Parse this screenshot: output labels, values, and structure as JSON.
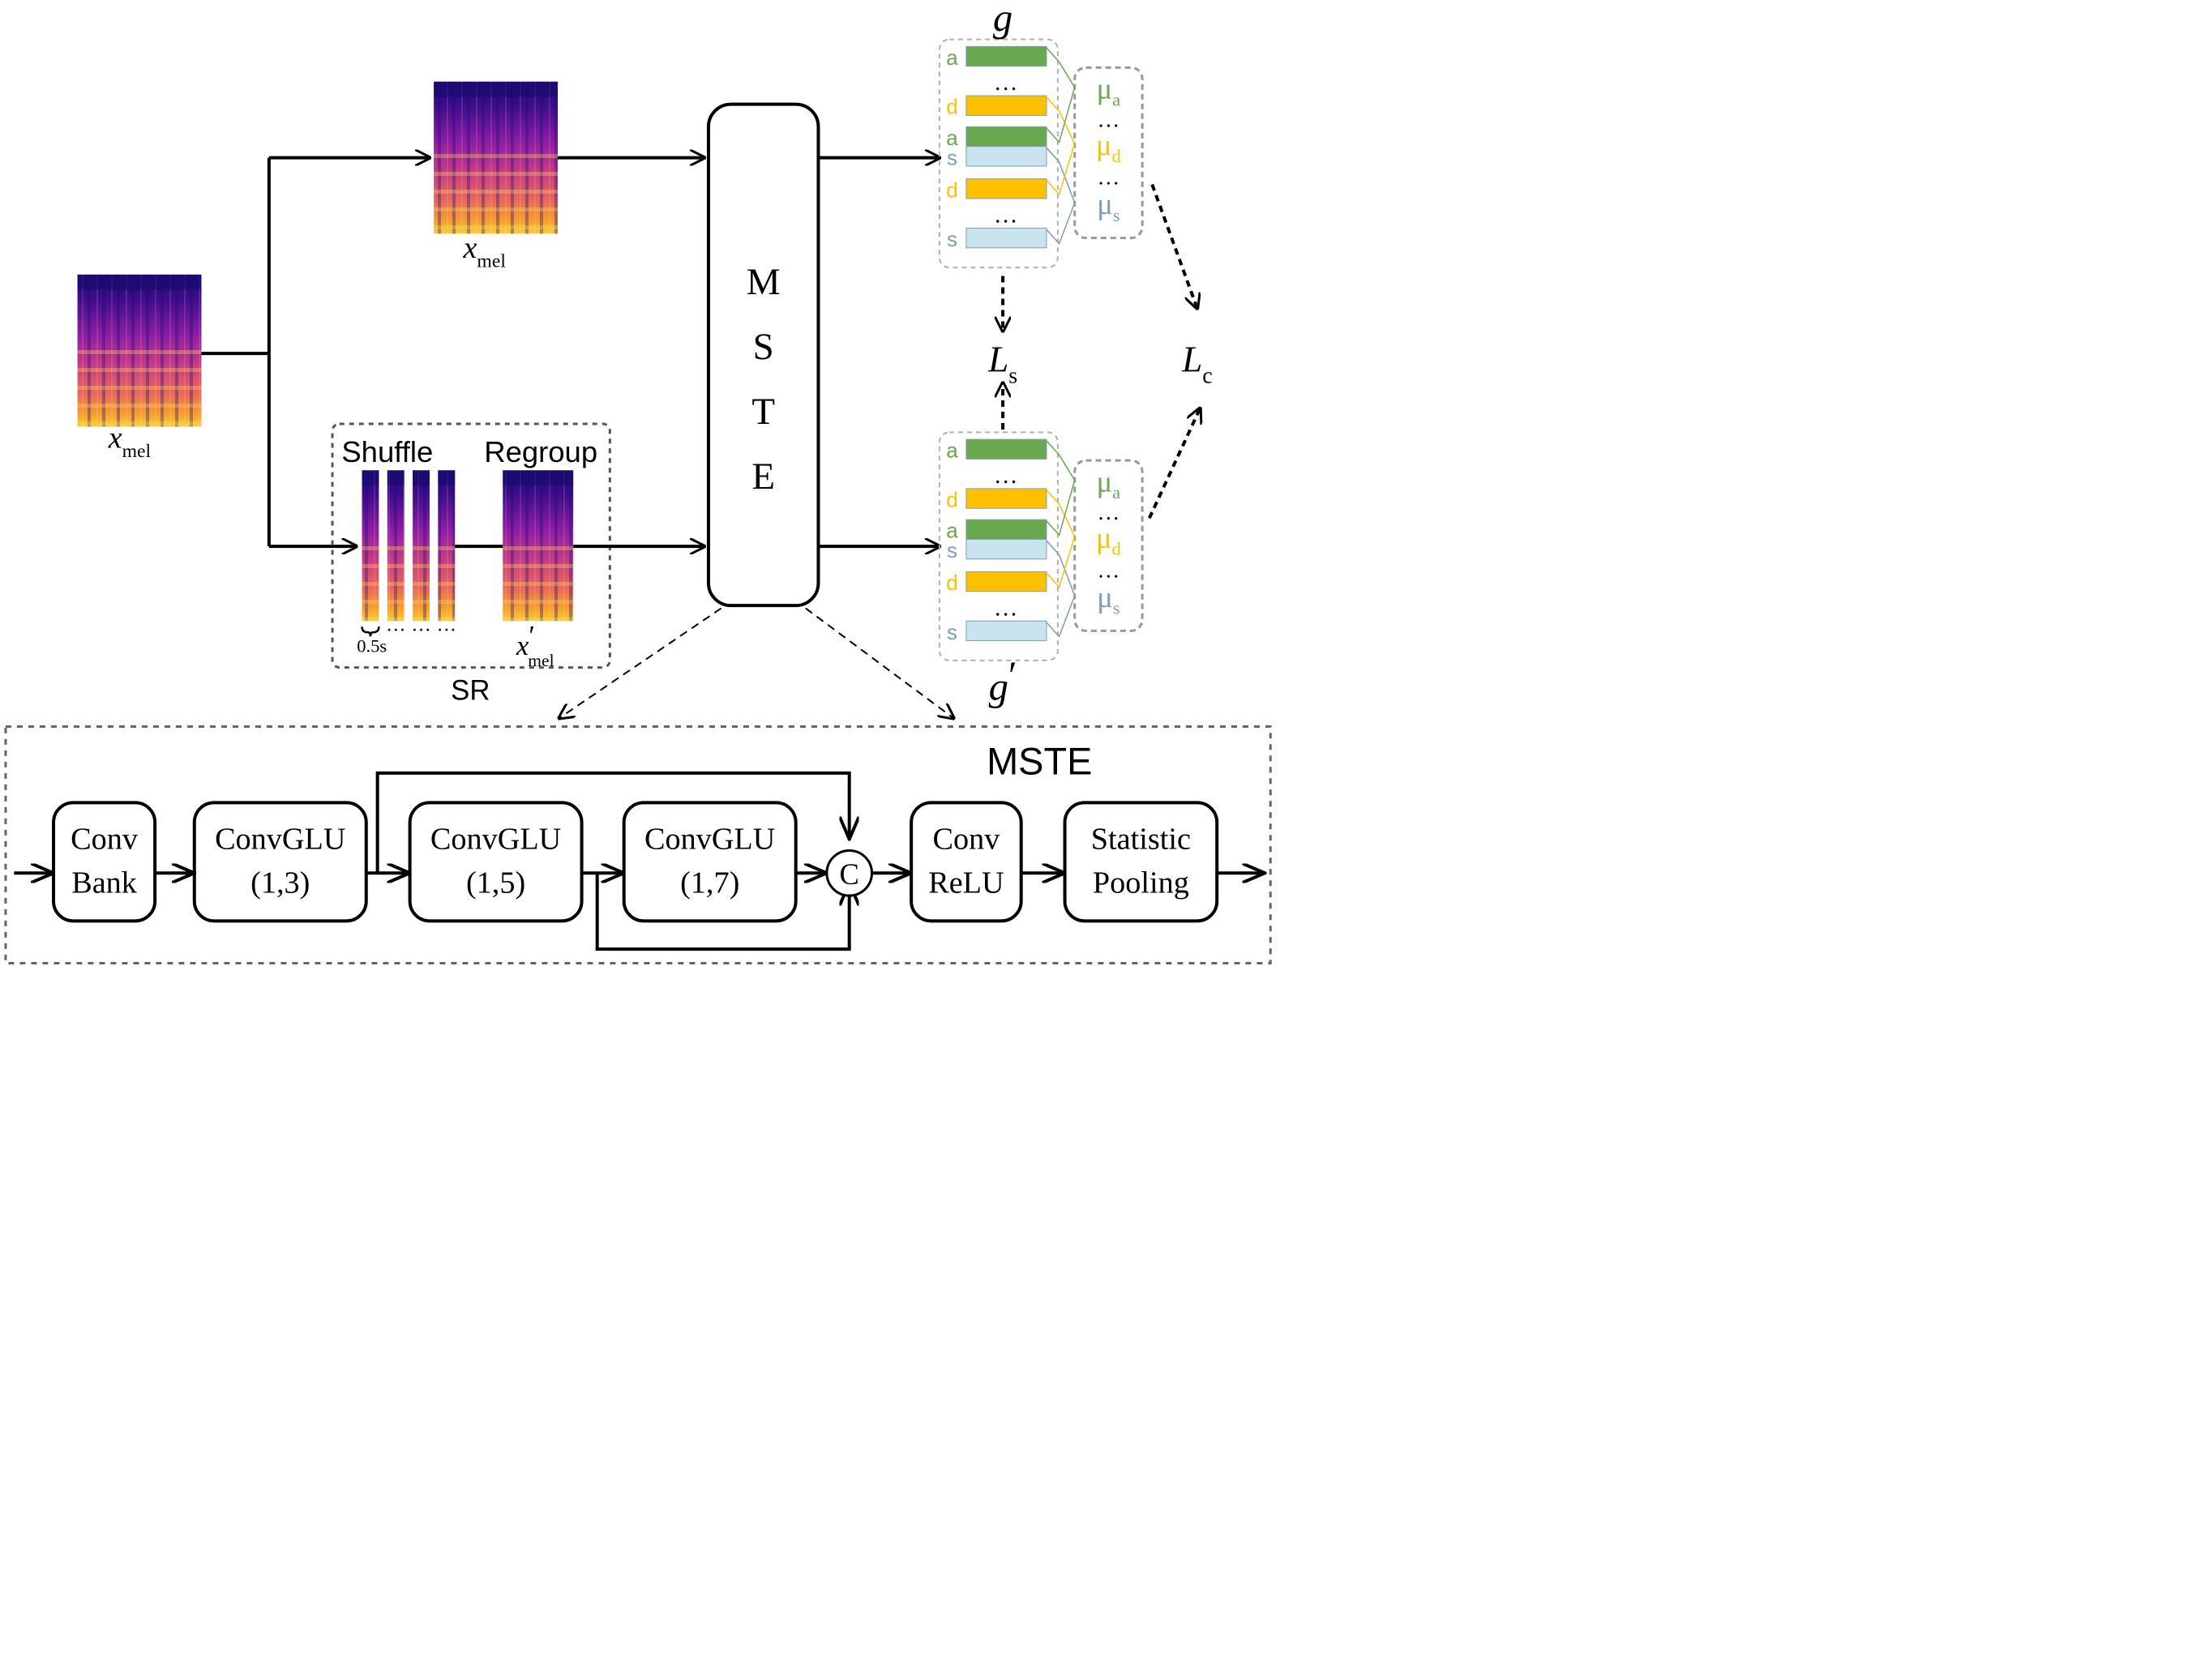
{
  "colors": {
    "green": "#6aa84f",
    "yellow": "#ffc000",
    "blue": "#c9e4ef",
    "blue_text": "#7c9cc4",
    "line": "#000000",
    "dashed_gray": "#808080",
    "light_gray": "#b0b0b0"
  },
  "input": {
    "label_base": "x",
    "label_sub": "mel"
  },
  "top_branch": {
    "label_base": "x",
    "label_sub": "mel"
  },
  "sr": {
    "label": "SR",
    "shuffle_label": "Shuffle",
    "regroup_label": "Regroup",
    "segment_label": "0.5s",
    "dots": "…",
    "output_base": "x",
    "output_prime": "′",
    "output_sub": "mel"
  },
  "mste_block": {
    "letters": [
      "M",
      "S",
      "T",
      "E"
    ]
  },
  "embeddings_top": {
    "label": "g",
    "rows": [
      "a",
      "…",
      "d",
      "a",
      "s",
      "d",
      "…",
      "s"
    ],
    "means": [
      {
        "symbol": "μ",
        "sub": "a",
        "color_key": "green"
      },
      {
        "symbol": "…",
        "sub": "",
        "color_key": "line"
      },
      {
        "symbol": "μ",
        "sub": "d",
        "color_key": "yellow"
      },
      {
        "symbol": "…",
        "sub": "",
        "color_key": "line"
      },
      {
        "symbol": "μ",
        "sub": "s",
        "color_key": "blue_text"
      }
    ]
  },
  "embeddings_bottom": {
    "label": "g",
    "prime": "′",
    "rows": [
      "a",
      "…",
      "d",
      "a",
      "s",
      "d",
      "…",
      "s"
    ],
    "means": [
      {
        "symbol": "μ",
        "sub": "a",
        "color_key": "green"
      },
      {
        "symbol": "…",
        "sub": "",
        "color_key": "line"
      },
      {
        "symbol": "μ",
        "sub": "d",
        "color_key": "yellow"
      },
      {
        "symbol": "…",
        "sub": "",
        "color_key": "line"
      },
      {
        "symbol": "μ",
        "sub": "s",
        "color_key": "blue_text"
      }
    ]
  },
  "losses": {
    "ls_base": "L",
    "ls_sub": "s",
    "lc_base": "L",
    "lc_sub": "c"
  },
  "detail": {
    "title": "MSTE",
    "blocks": [
      {
        "id": "conv-bank",
        "lines": [
          "Conv",
          "Bank"
        ]
      },
      {
        "id": "convglu-1-3",
        "lines": [
          "ConvGLU",
          "(1,3)"
        ]
      },
      {
        "id": "convglu-1-5",
        "lines": [
          "ConvGLU",
          "(1,5)"
        ]
      },
      {
        "id": "convglu-1-7",
        "lines": [
          "ConvGLU",
          "(1,7)"
        ]
      },
      {
        "id": "conv-relu",
        "lines": [
          "Conv",
          "ReLU"
        ]
      },
      {
        "id": "statistic-pooling",
        "lines": [
          "Statistic",
          "Pooling"
        ]
      }
    ],
    "concat_symbol": "C"
  }
}
